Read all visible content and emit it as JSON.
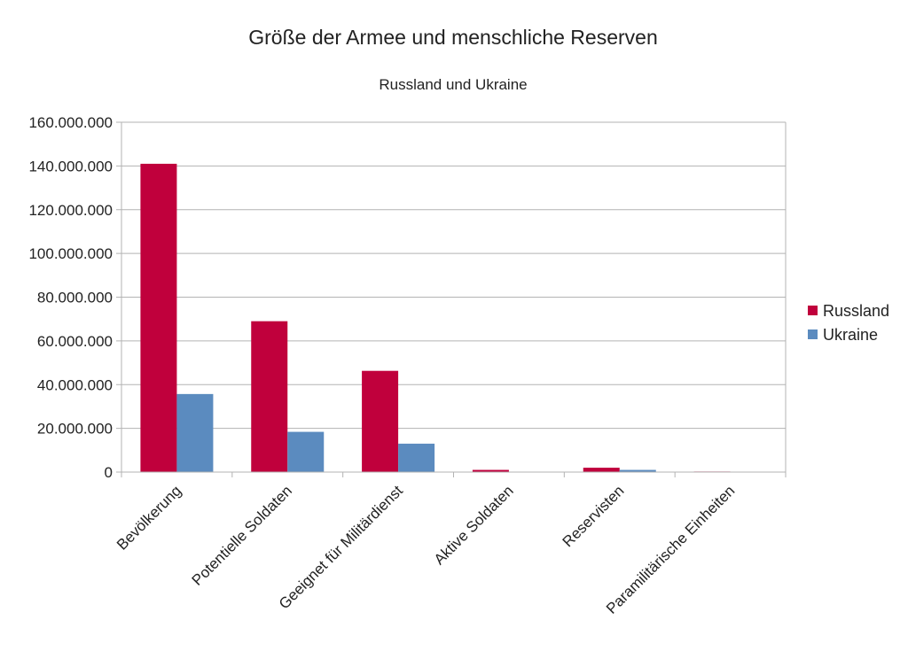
{
  "chart_data": {
    "type": "bar",
    "title": "Größe der Armee und menschliche Reserven",
    "subtitle": "Russland und Ukraine",
    "xlabel": "",
    "ylabel": "",
    "categories": [
      "Bevölkerung",
      "Potentielle Soldaten",
      "Geeignet für Militärdienst",
      "Aktive Soldaten",
      "Reservisten",
      "Paramilitärische Einheiten"
    ],
    "series": [
      {
        "name": "Russland",
        "color": "#c0003c",
        "values": [
          141000000,
          69000000,
          46300000,
          1000000,
          2000000,
          250000
        ]
      },
      {
        "name": "Ukraine",
        "color": "#5b8bbf",
        "values": [
          35700000,
          18400000,
          13000000,
          200000,
          1000000,
          100000
        ]
      }
    ],
    "ylim": [
      0,
      160000000
    ],
    "yticks": [
      "0",
      "20.000.000",
      "40.000.000",
      "60.000.000",
      "80.000.000",
      "100.000.000",
      "120.000.000",
      "140.000.000",
      "160.000.000"
    ],
    "grid": true,
    "legend": "right"
  }
}
